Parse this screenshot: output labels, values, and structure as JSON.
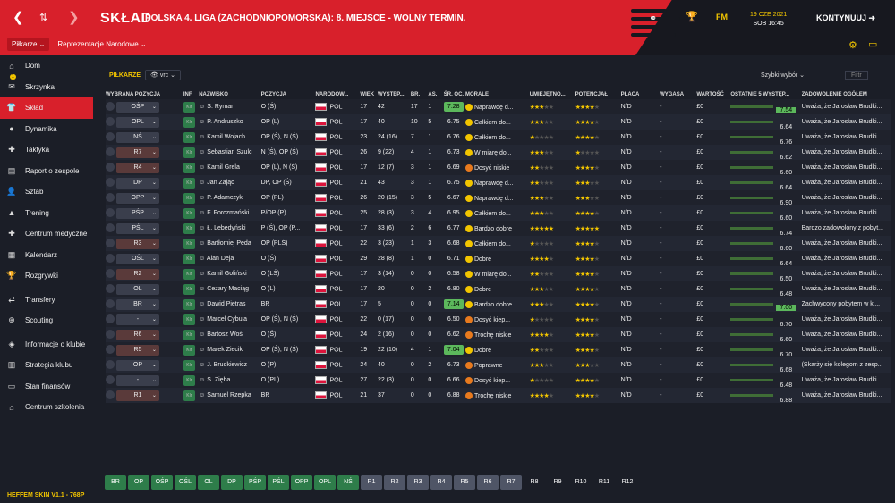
{
  "header": {
    "back": "❮",
    "updown": "⇅",
    "forward": "❯",
    "title": "SKŁAD",
    "subtitle": "POLSKA 4. LIGA (ZACHODNIOPOMORSKA): 8. MIEJSCE - WOLNY TERMIN.",
    "date_line1": "19 CZE 2021",
    "date_line2": "SOB 16:45",
    "continue": "KONTYNUUJ",
    "fm": "FM"
  },
  "subnav": {
    "players": "Piłkarze ⌄",
    "national": "Reprezentacje Narodowe ⌄"
  },
  "sidebar": {
    "badge": "1",
    "items": [
      {
        "label": "Dom",
        "icon": "home-icon",
        "glyph": "⌂"
      },
      {
        "label": "Skrzynka",
        "icon": "inbox-icon",
        "glyph": "✉"
      },
      {
        "label": "Skład",
        "icon": "shirt-icon",
        "glyph": "👕"
      },
      {
        "label": "Dynamika",
        "icon": "dynamics-icon",
        "glyph": "●"
      },
      {
        "label": "Taktyka",
        "icon": "tactics-icon",
        "glyph": "✚"
      },
      {
        "label": "Raport o zespole",
        "icon": "report-icon",
        "glyph": "▤"
      },
      {
        "label": "Sztab",
        "icon": "staff-icon",
        "glyph": "👤"
      },
      {
        "label": "Trening",
        "icon": "training-icon",
        "glyph": "▲"
      },
      {
        "label": "Centrum medyczne",
        "icon": "medical-icon",
        "glyph": "✚"
      },
      {
        "label": "Kalendarz",
        "icon": "calendar-icon",
        "glyph": "▦"
      },
      {
        "label": "Rozgrywki",
        "icon": "trophy-icon",
        "glyph": "🏆"
      },
      {
        "label": "Transfery",
        "icon": "transfers-icon",
        "glyph": "⇄"
      },
      {
        "label": "Scouting",
        "icon": "scouting-icon",
        "glyph": "⊕"
      },
      {
        "label": "Informacje o klubie",
        "icon": "club-info-icon",
        "glyph": "◈"
      },
      {
        "label": "Strategia klubu",
        "icon": "strategy-icon",
        "glyph": "▥"
      },
      {
        "label": "Stan finansów",
        "icon": "finance-icon",
        "glyph": "▭"
      },
      {
        "label": "Centrum szkolenia",
        "icon": "academy-icon",
        "glyph": "⌂"
      }
    ]
  },
  "skin": "HEFFEM SKIN V1.1 - 768P",
  "filter": {
    "label": "PIŁKARZE",
    "view": "vrc",
    "quick": "Szybki wybór",
    "filter": "Filtr"
  },
  "columns": [
    "WYBRANA POZYCJA",
    "INF",
    "NAZWISKO",
    "POZYCJA",
    "NARODOW...",
    "WIEK",
    "WYSTĘP...",
    "BR.",
    "AS.",
    "ŚR. OC.",
    "MORALE",
    "UMIEJĘTNO...",
    "POTENCJAŁ",
    "PŁACA",
    "WYGASA",
    "WARTOŚĆ",
    "OSTATNIE 5 WYSTĘP...",
    "ZADOWOLENIE OGÓŁEM"
  ],
  "rows": [
    {
      "sel": "OŚP",
      "name": "S. Rymar",
      "position": "O (Ś)",
      "nat": "POL",
      "age": "17",
      "apps": "42",
      "goals": "17",
      "assists": "1",
      "rating": "7.28",
      "rhi": true,
      "morale": "Naprawdę d...",
      "mc": "g",
      "abl": 3,
      "pot": 4,
      "wage": "N/D",
      "exp": "-",
      "val": "£0",
      "avg": "7.54",
      "ahi": true,
      "happy": "Uważa, że Jarosław Brudki..."
    },
    {
      "sel": "OPL",
      "name": "P. Andruszko",
      "position": "OP (L)",
      "nat": "POL",
      "age": "17",
      "apps": "40",
      "goals": "10",
      "assists": "5",
      "rating": "6.75",
      "morale": "Całkiem do...",
      "mc": "g",
      "abl": 3,
      "pot": 4,
      "wage": "N/D",
      "exp": "-",
      "val": "£0",
      "avg": "6.64",
      "happy": "Uważa, że Jarosław Brudki..."
    },
    {
      "sel": "NŚ",
      "name": "Kamil Wojach",
      "position": "OP (Ś), N (Ś)",
      "nat": "POL",
      "age": "23",
      "apps": "24 (16)",
      "goals": "7",
      "assists": "1",
      "rating": "6.76",
      "morale": "Całkiem do...",
      "mc": "g",
      "abl": 1,
      "pot": 4,
      "wage": "N/D",
      "exp": "-",
      "val": "£0",
      "avg": "6.76",
      "happy": "Uważa, że Jarosław Brudki..."
    },
    {
      "sel": "R7",
      "red": true,
      "name": "Sebastian Szulc",
      "position": "N (Ś), OP (Ś)",
      "nat": "POL",
      "age": "26",
      "apps": "9 (22)",
      "goals": "4",
      "assists": "1",
      "rating": "6.73",
      "morale": "W miarę do...",
      "mc": "g",
      "abl": 3,
      "pot": 1,
      "wage": "N/D",
      "exp": "-",
      "val": "£0",
      "avg": "6.62",
      "happy": "Uważa, że Jarosław Brudki..."
    },
    {
      "sel": "R4",
      "red": true,
      "name": "Kamil Grela",
      "position": "OP (L), N (Ś)",
      "nat": "POL",
      "age": "17",
      "apps": "12 (7)",
      "goals": "3",
      "assists": "1",
      "rating": "6.69",
      "morale": "Dosyć niskie",
      "mc": "o",
      "abl": 2,
      "pot": 4,
      "wage": "N/D",
      "exp": "-",
      "val": "£0",
      "avg": "6.60",
      "happy": "Uważa, że Jarosław Brudki..."
    },
    {
      "sel": "DP",
      "name": "Jan Zając",
      "position": "DP, OP (Ś)",
      "nat": "POL",
      "age": "21",
      "apps": "43",
      "goals": "3",
      "assists": "1",
      "rating": "6.75",
      "morale": "Naprawdę d...",
      "mc": "g",
      "abl": 2,
      "pot": 3,
      "wage": "N/D",
      "exp": "-",
      "val": "£0",
      "avg": "6.64",
      "happy": "Uważa, że Jarosław Brudki..."
    },
    {
      "sel": "OPP",
      "name": "P. Adamczyk",
      "position": "OP (PL)",
      "nat": "POL",
      "age": "26",
      "apps": "20 (15)",
      "goals": "3",
      "assists": "5",
      "rating": "6.67",
      "morale": "Naprawdę d...",
      "mc": "g",
      "abl": 3,
      "pot": 3,
      "wage": "N/D",
      "exp": "-",
      "val": "£0",
      "avg": "6.90",
      "happy": "Uważa, że Jarosław Brudki..."
    },
    {
      "sel": "PŚP",
      "name": "F. Forczmański",
      "position": "P/OP (P)",
      "nat": "POL",
      "age": "25",
      "apps": "28 (3)",
      "goals": "3",
      "assists": "4",
      "rating": "6.95",
      "morale": "Całkiem do...",
      "mc": "g",
      "abl": 3,
      "pot": 4,
      "wage": "N/D",
      "exp": "-",
      "val": "£0",
      "avg": "6.60",
      "happy": "Uważa, że Jarosław Brudki..."
    },
    {
      "sel": "PŚL",
      "name": "Ł. Lebedyński",
      "position": "P (Ś), OP (P...",
      "nat": "POL",
      "age": "17",
      "apps": "33 (6)",
      "goals": "2",
      "assists": "6",
      "rating": "6.77",
      "morale": "Bardzo dobre",
      "mc": "g",
      "abl": 5,
      "pot": 5,
      "wage": "N/D",
      "exp": "-",
      "val": "£0",
      "avg": "6.74",
      "happy": "Bardzo zadowolony z pobyt..."
    },
    {
      "sel": "R3",
      "red": true,
      "name": "Bartłomiej Peda",
      "position": "OP (PLŚ)",
      "nat": "POL",
      "age": "22",
      "apps": "3 (23)",
      "goals": "1",
      "assists": "3",
      "rating": "6.68",
      "morale": "Całkiem do...",
      "mc": "g",
      "abl": 1,
      "pot": 4,
      "wage": "N/D",
      "exp": "-",
      "val": "£0",
      "avg": "6.60",
      "happy": "Uważa, że Jarosław Brudki..."
    },
    {
      "sel": "OŚL",
      "name": "Alan Deja",
      "position": "O (Ś)",
      "nat": "POL",
      "age": "29",
      "apps": "28 (8)",
      "goals": "1",
      "assists": "0",
      "rating": "6.71",
      "morale": "Dobre",
      "mc": "g",
      "abl": 4,
      "pot": 4,
      "wage": "N/D",
      "exp": "-",
      "val": "£0",
      "avg": "6.64",
      "happy": "Uważa, że Jarosław Brudki..."
    },
    {
      "sel": "R2",
      "red": true,
      "name": "Kamil Goliński",
      "position": "O (LŚ)",
      "nat": "POL",
      "age": "17",
      "apps": "3 (14)",
      "goals": "0",
      "assists": "0",
      "rating": "6.58",
      "morale": "W miarę do...",
      "mc": "g",
      "abl": 2,
      "pot": 4,
      "wage": "N/D",
      "exp": "-",
      "val": "£0",
      "avg": "6.50",
      "happy": "Uważa, że Jarosław Brudki..."
    },
    {
      "sel": "OL",
      "name": "Cezary Maciąg",
      "position": "O (L)",
      "nat": "POL",
      "age": "17",
      "apps": "20",
      "goals": "0",
      "assists": "2",
      "rating": "6.80",
      "morale": "Dobre",
      "mc": "g",
      "abl": 3,
      "pot": 4,
      "wage": "N/D",
      "exp": "-",
      "val": "£0",
      "avg": "6.48",
      "happy": "Uważa, że Jarosław Brudki..."
    },
    {
      "sel": "BR",
      "name": "Dawid Pietras",
      "position": "BR",
      "nat": "POL",
      "age": "17",
      "apps": "5",
      "goals": "0",
      "assists": "0",
      "rating": "7.14",
      "rhi": true,
      "morale": "Bardzo dobre",
      "mc": "g",
      "abl": 3,
      "pot": 4,
      "wage": "N/D",
      "exp": "-",
      "val": "£0",
      "avg": "7.00",
      "ahi": true,
      "happy": "Zachwycony pobytem w kl..."
    },
    {
      "sel": "-",
      "name": "Marcel Cybula",
      "position": "OP (Ś), N (Ś)",
      "nat": "POL",
      "age": "22",
      "apps": "0 (17)",
      "goals": "0",
      "assists": "0",
      "rating": "6.50",
      "morale": "Dosyć kiep...",
      "mc": "o",
      "abl": 1,
      "pot": 4,
      "wage": "N/D",
      "exp": "-",
      "val": "£0",
      "avg": "6.70",
      "happy": "Uważa, że Jarosław Brudki..."
    },
    {
      "sel": "R6",
      "red": true,
      "name": "Bartosz Woś",
      "position": "O (Ś)",
      "nat": "POL",
      "age": "24",
      "apps": "2 (16)",
      "goals": "0",
      "assists": "0",
      "rating": "6.62",
      "morale": "Trochę niskie",
      "mc": "o",
      "abl": 4,
      "pot": 4,
      "wage": "N/D",
      "exp": "-",
      "val": "£0",
      "avg": "6.60",
      "happy": "Uważa, że Jarosław Brudki..."
    },
    {
      "sel": "R5",
      "red": true,
      "name": "Marek Ziecik",
      "position": "OP (Ś), N (Ś)",
      "nat": "POL",
      "age": "19",
      "apps": "22 (10)",
      "goals": "4",
      "assists": "1",
      "rating": "7.04",
      "rhi": true,
      "morale": "Dobre",
      "mc": "g",
      "abl": 2,
      "pot": 4,
      "wage": "N/D",
      "exp": "-",
      "val": "£0",
      "avg": "6.70",
      "happy": "Uważa, że Jarosław Brudki..."
    },
    {
      "sel": "OP",
      "name": "J. Brudkiewicz",
      "position": "O (P)",
      "nat": "POL",
      "age": "24",
      "apps": "40",
      "goals": "0",
      "assists": "2",
      "rating": "6.73",
      "morale": "Poprawne",
      "mc": "o",
      "abl": 3,
      "pot": 3,
      "wage": "N/D",
      "exp": "-",
      "val": "£0",
      "avg": "6.68",
      "happy": "(Skarży się kolegom z zesp..."
    },
    {
      "sel": "-",
      "name": "S. Zięba",
      "position": "O (PL)",
      "nat": "POL",
      "age": "27",
      "apps": "22 (3)",
      "goals": "0",
      "assists": "0",
      "rating": "6.66",
      "morale": "Dosyć kiep...",
      "mc": "o",
      "abl": 1,
      "pot": 4,
      "wage": "N/D",
      "exp": "-",
      "val": "£0",
      "avg": "6.48",
      "happy": "Uważa, że Jarosław Brudki..."
    },
    {
      "sel": "R1",
      "red": true,
      "name": "Samuel Rzepka",
      "position": "BR",
      "nat": "POL",
      "age": "21",
      "apps": "37",
      "goals": "0",
      "assists": "0",
      "rating": "6.88",
      "morale": "Trochę niskie",
      "mc": "o",
      "abl": 4,
      "pot": 4,
      "wage": "N/D",
      "exp": "-",
      "val": "£0",
      "avg": "6.88",
      "happy": "Uważa, że Jarosław Brudki..."
    }
  ],
  "tabs": [
    {
      "label": "BR",
      "t": "g"
    },
    {
      "label": "OP",
      "t": "g"
    },
    {
      "label": "OŚP",
      "t": "g"
    },
    {
      "label": "OŚL",
      "t": "g"
    },
    {
      "label": "OL",
      "t": "g"
    },
    {
      "label": "DP",
      "t": "g"
    },
    {
      "label": "PŚP",
      "t": "g"
    },
    {
      "label": "PŚL",
      "t": "g"
    },
    {
      "label": "OPP",
      "t": "g"
    },
    {
      "label": "OPL",
      "t": "g"
    },
    {
      "label": "NŚ",
      "t": "g"
    },
    {
      "label": "R1",
      "t": "s"
    },
    {
      "label": "R2",
      "t": "s"
    },
    {
      "label": "R3",
      "t": "s"
    },
    {
      "label": "R4",
      "t": "s"
    },
    {
      "label": "R5",
      "t": "s"
    },
    {
      "label": "R6",
      "t": "s"
    },
    {
      "label": "R7",
      "t": "s"
    },
    {
      "label": "R8",
      "t": "n"
    },
    {
      "label": "R9",
      "t": "n"
    },
    {
      "label": "R10",
      "t": "n"
    },
    {
      "label": "R11",
      "t": "n"
    },
    {
      "label": "R12",
      "t": "n"
    }
  ]
}
